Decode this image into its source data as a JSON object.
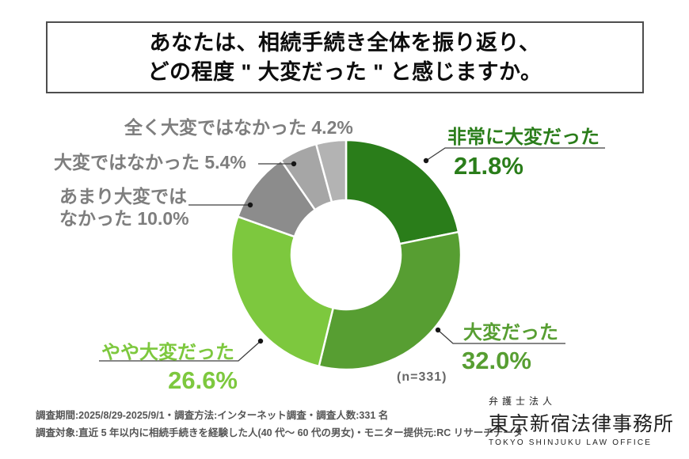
{
  "title": {
    "line1": "あなたは、相続手続き全体を振り返り、",
    "line2": "どの程度 \" 大変だった \" と感じますか。"
  },
  "chart_data": {
    "type": "pie",
    "subtype": "donut",
    "title": "あなたは、相続手続き全体を振り返り、どの程度\"大変だった\"と感じますか。",
    "sample_size": 331,
    "sample_note": "(n=331)",
    "start_angle_deg": 0,
    "direction": "clockwise",
    "segments": [
      {
        "label": "非常に大変だった",
        "value": 21.8,
        "display": "21.8%",
        "color": "#2a7d1a"
      },
      {
        "label": "大変だった",
        "value": 32.0,
        "display": "32.0%",
        "color": "#579e32"
      },
      {
        "label": "やや大変だった",
        "value": 26.6,
        "display": "26.6%",
        "color": "#7dc83e"
      },
      {
        "label": "あまり大変ではなかった",
        "value": 10.0,
        "display": "10.0%",
        "color": "#8c8c8c"
      },
      {
        "label": "大変ではなかった",
        "value": 5.4,
        "display": "5.4%",
        "color": "#a6a6a6"
      },
      {
        "label": "全く大変ではなかった",
        "value": 4.2,
        "display": "4.2%",
        "color": "#b3b3b3"
      }
    ]
  },
  "callouts": {
    "very": {
      "name": "非常に大変だった",
      "pct": "21.8%"
    },
    "taihen": {
      "name": "大変だった",
      "pct": "32.0%"
    },
    "yaya": {
      "name": "やや大変だった",
      "pct": "26.6%"
    },
    "amari_line1": "あまり大変では",
    "amari_line2": "なかった 10.0%",
    "not_line": "大変ではなかった 5.4%",
    "excl_line": "全く大変ではなかった 4.2%",
    "sample": "(n=331)"
  },
  "footer": {
    "line1": "調査期間:2025/8/29-2025/9/1・調査方法:インターネット調査・調査人数:331 名",
    "line2": "調査対象:直近 5 年以内に相続手続きを経験した人(40 代〜 60 代の男女)・モニター提供元:RC リサーチデータ"
  },
  "logo": {
    "org_type": "弁護士法人",
    "name": "東京新宿法律事務所",
    "name_en": "TOKYO SHINJUKU LAW OFFICE"
  }
}
